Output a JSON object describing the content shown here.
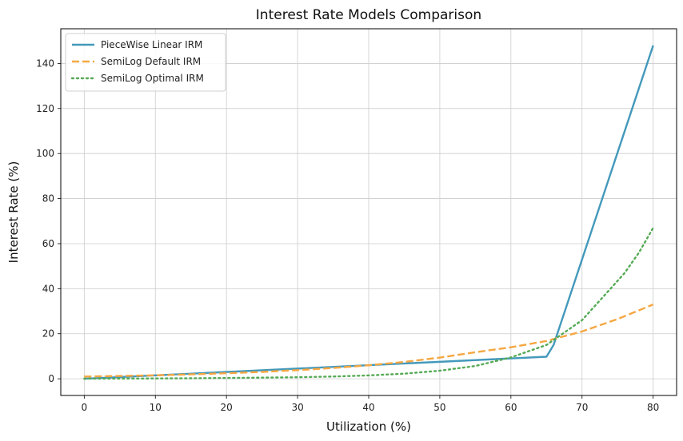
{
  "chart_data": {
    "type": "line",
    "title": "Interest Rate Models Comparison",
    "xlabel": "Utilization (%)",
    "ylabel": "Interest Rate (%)",
    "xlim": [
      -3.3,
      83.3
    ],
    "ylim": [
      -7.4,
      155.4
    ],
    "xticks": [
      0,
      10,
      20,
      30,
      40,
      50,
      60,
      70,
      80
    ],
    "yticks": [
      0,
      20,
      40,
      60,
      80,
      100,
      120,
      140
    ],
    "grid": true,
    "legend_position": "top-left",
    "series": [
      {
        "name": "PieceWise Linear IRM",
        "color": "#4499bb",
        "style": "solid",
        "x": [
          0,
          65,
          66,
          80
        ],
        "y": [
          0,
          9.8,
          15,
          148
        ]
      },
      {
        "name": "SemiLog Default IRM",
        "color": "#f5a742",
        "style": "dashed",
        "x": [
          0,
          5,
          10,
          15,
          20,
          25,
          30,
          35,
          40,
          45,
          50,
          55,
          60,
          65,
          70,
          75,
          80
        ],
        "y": [
          1.0,
          1.25,
          1.55,
          1.95,
          2.45,
          3.05,
          3.85,
          4.8,
          6.0,
          7.5,
          9.4,
          11.8,
          14.0,
          16.8,
          21.0,
          26.5,
          33.0
        ]
      },
      {
        "name": "SemiLog Optimal IRM",
        "color": "#55aa55",
        "style": "dotted",
        "x": [
          0,
          5,
          10,
          15,
          20,
          25,
          30,
          35,
          40,
          45,
          50,
          55,
          60,
          65,
          70,
          72,
          74,
          76,
          78,
          80
        ],
        "y": [
          0.05,
          0.08,
          0.14,
          0.22,
          0.35,
          0.5,
          0.7,
          1.0,
          1.5,
          2.3,
          3.6,
          5.7,
          9.5,
          15.0,
          26.0,
          33.0,
          40.0,
          47.0,
          56.0,
          67.0
        ]
      }
    ]
  }
}
